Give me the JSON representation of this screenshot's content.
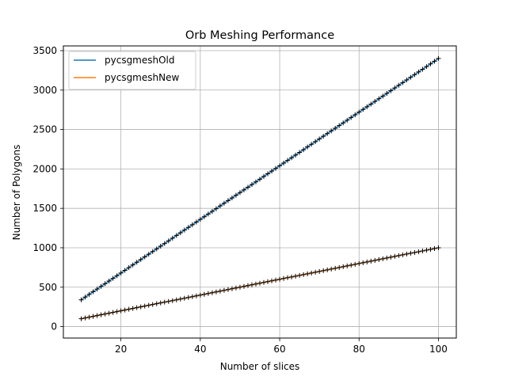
{
  "chart_data": {
    "type": "line",
    "title": "Orb Meshing Performance",
    "xlabel": "Number of slices",
    "ylabel": "Number of Polygons",
    "xlim": [
      5.5,
      104.5
    ],
    "ylim": [
      -145,
      3560
    ],
    "xticks": [
      20,
      40,
      60,
      80,
      100
    ],
    "yticks": [
      0,
      500,
      1000,
      1500,
      2000,
      2500,
      3000,
      3500
    ],
    "grid": true,
    "legend_position": "top-left",
    "series": [
      {
        "name": "pycsgmeshOld",
        "color": "#1f77b4",
        "marker": "+",
        "marker_color": "#000000",
        "formula": "34 * x",
        "x_range": [
          10,
          100
        ],
        "x_step": 1
      },
      {
        "name": "pycsgmeshNew",
        "color": "#ff7f0e",
        "marker": "+",
        "marker_color": "#000000",
        "formula": "10 * x",
        "x_range": [
          10,
          100
        ],
        "x_step": 1
      }
    ]
  }
}
